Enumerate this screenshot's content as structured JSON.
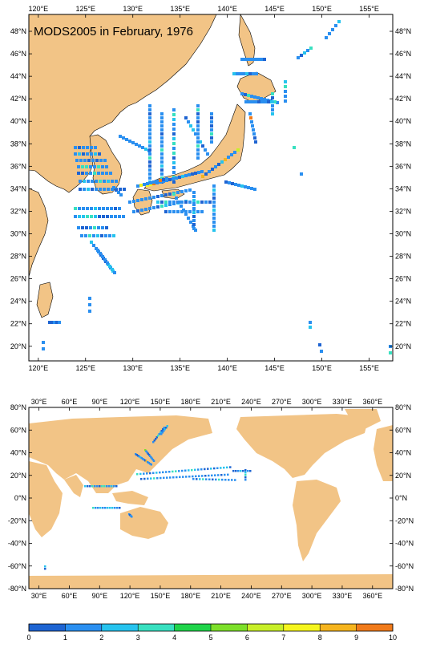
{
  "map_top": {
    "title": "MODS2005 in February, 1976",
    "lon_labels": [
      "120°E",
      "125°E",
      "130°E",
      "135°E",
      "140°E",
      "145°E",
      "150°E",
      "155°E"
    ],
    "lat_labels": [
      "48°N",
      "46°N",
      "44°N",
      "42°N",
      "40°N",
      "38°N",
      "36°N",
      "34°N",
      "32°N",
      "30°N",
      "28°N",
      "26°N",
      "24°N",
      "22°N",
      "20°N"
    ],
    "lon_range": [
      119,
      157.5
    ],
    "lat_range": [
      18.7,
      49.5
    ]
  },
  "map_bottom": {
    "lon_labels": [
      "30°E",
      "60°E",
      "90°E",
      "120°E",
      "150°E",
      "180°E",
      "210°E",
      "240°E",
      "270°E",
      "300°E",
      "330°E",
      "360°E"
    ],
    "lat_labels": [
      "80°N",
      "60°N",
      "40°N",
      "20°N",
      "0°N",
      "-20°N",
      "-40°N",
      "-60°N",
      "-80°N"
    ],
    "lon_range": [
      20,
      380
    ],
    "lat_range": [
      -80,
      80
    ]
  },
  "colorbar": {
    "labels": [
      "0",
      "1",
      "2",
      "3",
      "4",
      "5",
      "6",
      "7",
      "8",
      "9",
      "10"
    ],
    "colors": [
      "#1e64d2",
      "#2a8ff0",
      "#26c3ee",
      "#38e0c0",
      "#1fd44a",
      "#7de02a",
      "#c8ef28",
      "#f5f51e",
      "#f5b41e",
      "#f07a1a",
      "#e0461a"
    ]
  },
  "colors": {
    "land": "#f2c486",
    "ocean": "#ffffff"
  }
}
